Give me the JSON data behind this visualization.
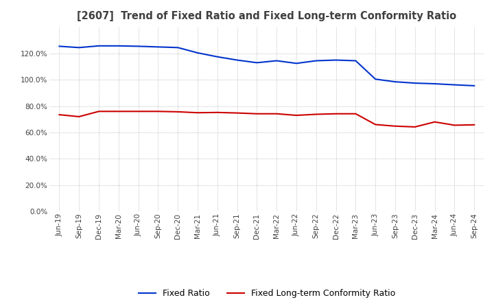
{
  "title": "[2607]  Trend of Fixed Ratio and Fixed Long-term Conformity Ratio",
  "title_color": "#404040",
  "x_labels": [
    "Jun-19",
    "Sep-19",
    "Dec-19",
    "Mar-20",
    "Jun-20",
    "Sep-20",
    "Dec-20",
    "Mar-21",
    "Jun-21",
    "Sep-21",
    "Dec-21",
    "Mar-22",
    "Jun-22",
    "Sep-22",
    "Dec-22",
    "Mar-23",
    "Jun-23",
    "Sep-23",
    "Dec-23",
    "Mar-24",
    "Jun-24",
    "Sep-24"
  ],
  "fixed_ratio": [
    1.255,
    1.245,
    1.258,
    1.258,
    1.255,
    1.25,
    1.245,
    1.205,
    1.175,
    1.15,
    1.13,
    1.145,
    1.125,
    1.145,
    1.15,
    1.145,
    1.005,
    0.985,
    0.975,
    0.97,
    0.962,
    0.955
  ],
  "fixed_lt_ratio": [
    0.735,
    0.72,
    0.76,
    0.76,
    0.76,
    0.76,
    0.757,
    0.75,
    0.752,
    0.748,
    0.742,
    0.742,
    0.73,
    0.738,
    0.742,
    0.742,
    0.66,
    0.648,
    0.642,
    0.68,
    0.655,
    0.658
  ],
  "fixed_ratio_color": "#0033cc",
  "fixed_lt_ratio_color": "#cc0000",
  "ylim": [
    0.0,
    1.4
  ],
  "yticks": [
    0.0,
    0.2,
    0.4,
    0.6,
    0.8,
    1.0,
    1.2
  ],
  "grid_color": "#aaaaaa",
  "background_color": "#ffffff",
  "legend_fixed_ratio": "Fixed Ratio",
  "legend_fixed_lt_ratio": "Fixed Long-term Conformity Ratio",
  "figsize": [
    7.2,
    4.4
  ],
  "dpi": 100
}
